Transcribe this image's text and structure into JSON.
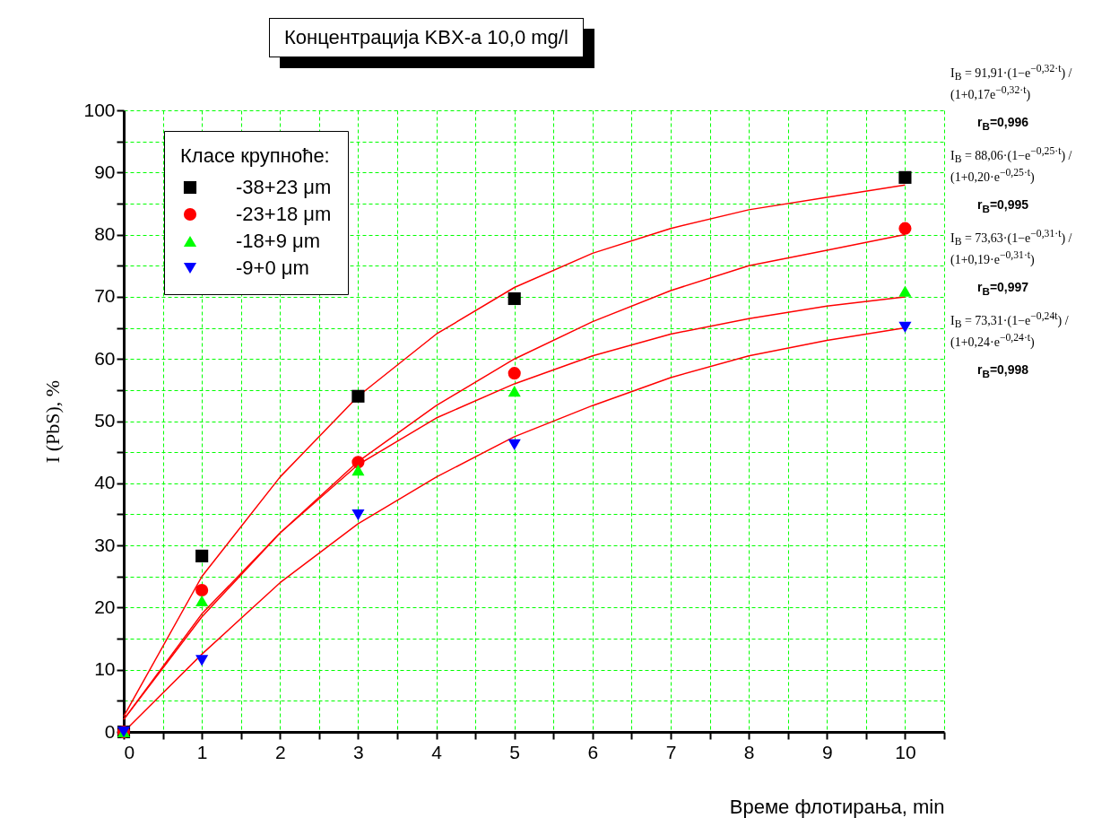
{
  "chart_data": {
    "type": "scatter",
    "title": "Концентрација KBX-a 10,0 mg/l",
    "xlabel": "Време флотирања, min",
    "ylabel": "I (PbS), %",
    "legend_title": "Класе крупноће:",
    "xlim": [
      0,
      10.5
    ],
    "ylim": [
      0,
      100
    ],
    "xticks": [
      0,
      {
        "value": 0.5,
        "label": null
      },
      1,
      {
        "value": 1.5,
        "label": null
      },
      2,
      {
        "value": 2.5,
        "label": null
      },
      3,
      {
        "value": 3.5,
        "label": null
      },
      4,
      {
        "value": 4.5,
        "label": null
      },
      5,
      {
        "value": 5.5,
        "label": null
      },
      6,
      {
        "value": 6.5,
        "label": null
      },
      7,
      {
        "value": 7.5,
        "label": null
      },
      8,
      {
        "value": 8.5,
        "label": null
      },
      9,
      {
        "value": 9.5,
        "label": null
      },
      10,
      {
        "value": 10.5,
        "label": null
      }
    ],
    "yticks": [
      0,
      {
        "value": 5,
        "label": null
      },
      10,
      {
        "value": 15,
        "label": null
      },
      20,
      {
        "value": 25,
        "label": null
      },
      30,
      {
        "value": 35,
        "label": null
      },
      40,
      {
        "value": 45,
        "label": null
      },
      50,
      {
        "value": 55,
        "label": null
      },
      60,
      {
        "value": 65,
        "label": null
      },
      70,
      {
        "value": 75,
        "label": null
      },
      80,
      {
        "value": 85,
        "label": null
      },
      90,
      {
        "value": 95,
        "label": null
      },
      100
    ],
    "grid": true,
    "legend": "top left",
    "series": [
      {
        "type": "line",
        "color": "#ff0000",
        "marker": "none",
        "x": [
          0,
          1,
          2,
          3,
          4,
          5,
          6,
          7,
          8,
          9,
          10
        ],
        "values": [
          2.5,
          25,
          41,
          54,
          64,
          71.5,
          77,
          81,
          84,
          86,
          88
        ]
      },
      {
        "type": "line",
        "color": "#ff0000",
        "marker": "none",
        "x": [
          0,
          1,
          2,
          3,
          4,
          5,
          6,
          7,
          8,
          9,
          10
        ],
        "values": [
          2,
          19,
          32,
          43.5,
          52.5,
          60,
          66,
          71,
          75,
          77.5,
          80
        ]
      },
      {
        "type": "line",
        "color": "#ff0000",
        "marker": "none",
        "x": [
          0,
          1,
          2,
          3,
          4,
          5,
          6,
          7,
          8,
          9,
          10
        ],
        "values": [
          2,
          18.5,
          32,
          43,
          50.5,
          56,
          60.5,
          64,
          66.5,
          68.5,
          70
        ]
      },
      {
        "type": "line",
        "color": "#ff0000",
        "marker": "none",
        "x": [
          0,
          1,
          2,
          3,
          4,
          5,
          6,
          7,
          8,
          9,
          10
        ],
        "values": [
          0,
          12.5,
          24,
          33.5,
          41,
          47.5,
          52.5,
          57,
          60.5,
          63,
          65
        ]
      },
      {
        "name": "-38+23 μm",
        "color": "#000000",
        "marker": "square",
        "x": [
          0,
          1,
          3,
          5,
          10
        ],
        "values": [
          0,
          28.3,
          54,
          69.7,
          89.2
        ]
      },
      {
        "name": "-23+18 μm",
        "color": "#ff0000",
        "marker": "circle",
        "x": [
          0,
          1,
          3,
          5,
          10
        ],
        "values": [
          0,
          22.8,
          43.4,
          57.7,
          81
        ]
      },
      {
        "name": "-18+9 μm",
        "color": "#00ff00",
        "marker": "triangle",
        "x": [
          0,
          1,
          3,
          5,
          10
        ],
        "values": [
          0,
          21.1,
          42.1,
          54.8,
          70.9
        ]
      },
      {
        "name": "-9+0 μm",
        "color": "#0000ff",
        "marker": "triangle-down",
        "x": [
          0,
          1,
          3,
          5,
          10
        ],
        "values": [
          0,
          11.5,
          34.9,
          46.2,
          65.1
        ]
      }
    ],
    "annotations": [
      "I$_{B}$ = 91,91·(1−e$^{−0,32·t}$) / (1+0,17e$^{−0,32·t}$)",
      "r$_{B}$=0,996",
      "I$_{B}$ = 88,06·(1−e$^{−0,25·t}$) / (1+0,20·e$^{−0,25·t}$)",
      "r$_{B}$=0,995",
      "I$_{B}$ = 73,63·(1−e$^{−0,31·t}$) / (1+0,19·e$^{−0,31·t}$)",
      "r$_{B}$=0,997",
      "I$_{B}$ = 73,31·(1−e$^{−0,24t}$) / (1+0,24·e$^{−0,24·t}$)",
      "r$_{B}$=0,998"
    ]
  }
}
